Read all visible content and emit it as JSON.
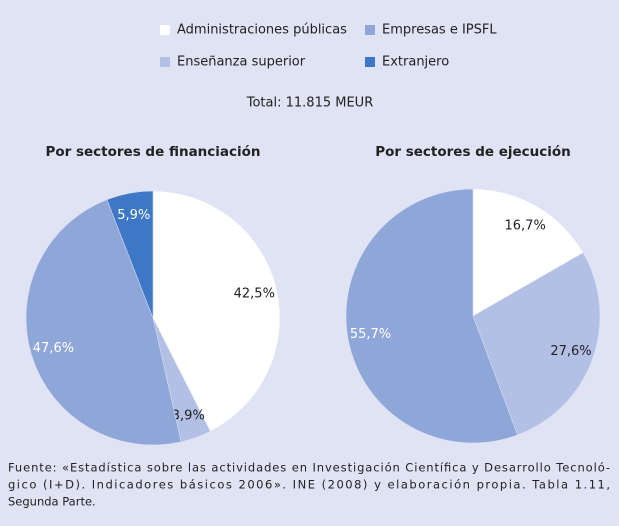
{
  "total": "Total: 11.815 MEUR",
  "source": [
    "Fuente: «Estadística sobre las actividades en Investigación Científica y Desarrollo Tecnoló-",
    "gico (I+D). Indicadores básicos 2006». INE (2008) y elaboración propia. Tabla 1.11,",
    "Segunda Parte."
  ],
  "chart_data": [
    {
      "type": "pie",
      "title": "Por sectores de financiación",
      "categories": [
        "Administraciones públicas",
        "Enseñanza superior",
        "Empresas e IPSFL",
        "Extranjero"
      ],
      "values": [
        42.5,
        3.9,
        47.6,
        5.9
      ],
      "value_labels": [
        "42,5%",
        "3,9%",
        "47,6%",
        "5,9%"
      ],
      "colors": [
        "#ffffff",
        "#b3c0e6",
        "#8fa6d9",
        "#3d77c6"
      ]
    },
    {
      "type": "pie",
      "title": "Por sectores de ejecución",
      "categories": [
        "Administraciones públicas",
        "Enseñanza superior",
        "Empresas e IPSFL"
      ],
      "values": [
        16.7,
        27.6,
        55.7
      ],
      "value_labels": [
        "16,7%",
        "27,6%",
        "55,7%"
      ],
      "colors": [
        "#ffffff",
        "#b3c0e6",
        "#8fa6d9"
      ]
    }
  ]
}
